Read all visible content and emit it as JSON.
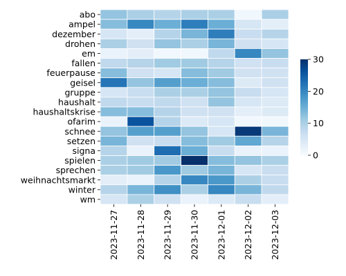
{
  "chart_data": {
    "type": "heatmap",
    "title": "",
    "xlabel": "",
    "ylabel": "",
    "colormap": "Blues",
    "colors": {
      "low": "#f7fbff",
      "high": "#08306b",
      "cell_border": "#ffffff"
    },
    "color_range": [
      0,
      30
    ],
    "colorbar_ticks": [
      0,
      10,
      20,
      30
    ],
    "x_categories": [
      "2023-11-27",
      "2023-11-28",
      "2023-11-29",
      "2023-11-30",
      "2023-12-01",
      "2023-12-02",
      "2023-12-03"
    ],
    "y_categories": [
      "abo",
      "ampel",
      "dezember",
      "drohen",
      "em",
      "fallen",
      "feuerpause",
      "geisel",
      "gruppe",
      "haushalt",
      "haushaltskrise",
      "ofarim",
      "schnee",
      "setzen",
      "signa",
      "spielen",
      "sprechen",
      "weihnachtsmarkt",
      "winter",
      "wm"
    ],
    "values": [
      [
        12,
        10,
        9,
        10,
        10,
        1,
        10
      ],
      [
        13,
        20,
        15,
        21,
        15,
        5,
        3
      ],
      [
        5,
        3,
        9,
        14,
        21,
        7,
        9
      ],
      [
        10,
        6,
        12,
        10,
        14,
        6,
        5
      ],
      [
        2,
        3,
        1,
        1,
        8,
        20,
        12
      ],
      [
        8,
        9,
        11,
        11,
        9,
        6,
        7
      ],
      [
        13,
        6,
        5,
        13,
        11,
        6,
        6
      ],
      [
        22,
        12,
        17,
        15,
        13,
        4,
        6
      ],
      [
        5,
        7,
        10,
        10,
        12,
        7,
        5
      ],
      [
        8,
        7,
        8,
        6,
        12,
        5,
        4
      ],
      [
        13,
        13,
        9,
        6,
        6,
        3,
        4
      ],
      [
        2,
        26,
        9,
        4,
        5,
        1,
        1
      ],
      [
        12,
        17,
        17,
        12,
        5,
        29,
        14
      ],
      [
        14,
        6,
        7,
        13,
        11,
        16,
        9
      ],
      [
        9,
        2,
        23,
        15,
        7,
        2,
        2
      ],
      [
        10,
        11,
        11,
        31,
        13,
        12,
        10
      ],
      [
        10,
        11,
        18,
        11,
        14,
        5,
        7
      ],
      [
        3,
        2,
        9,
        20,
        18,
        10,
        7
      ],
      [
        9,
        14,
        19,
        10,
        20,
        14,
        8
      ],
      [
        5,
        10,
        6,
        2,
        4,
        7,
        3
      ]
    ]
  }
}
